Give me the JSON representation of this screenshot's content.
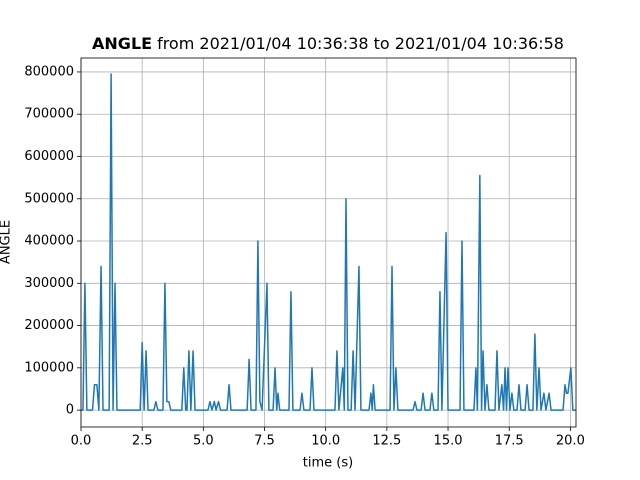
{
  "chart_data": {
    "type": "line",
    "title": {
      "bold": "ANGLE",
      "rest": "from 2021/01/04 10:36:38 to 2021/01/04 10:36:58"
    },
    "xlabel": "time (s)",
    "ylabel": "ANGLE",
    "color": "#1f77b4",
    "grid": true,
    "xlim": [
      0,
      20.23
    ],
    "ylim": [
      -40000,
      833000
    ],
    "xticks": [
      {
        "value": 0,
        "label": "0.0"
      },
      2.5,
      {
        "value": 5,
        "label": "5.0"
      },
      7.5,
      {
        "value": 10,
        "label": "10.0"
      },
      12.5,
      {
        "value": 15,
        "label": "15.0"
      },
      17.5,
      {
        "value": 20,
        "label": "20.0"
      }
    ],
    "yticks": [
      0,
      100000,
      200000,
      300000,
      400000,
      500000,
      600000,
      700000,
      800000
    ],
    "x": [
      0.0,
      0.08,
      0.16,
      0.24,
      0.47,
      0.55,
      0.65,
      0.73,
      0.82,
      0.9,
      1.15,
      1.23,
      1.31,
      1.39,
      1.47,
      2.42,
      2.5,
      2.58,
      2.66,
      2.74,
      2.98,
      3.06,
      3.14,
      3.35,
      3.43,
      3.51,
      3.59,
      3.67,
      4.12,
      4.2,
      4.28,
      4.33,
      4.41,
      4.49,
      4.58,
      4.66,
      5.19,
      5.27,
      5.35,
      5.45,
      5.52,
      5.62,
      5.7,
      5.97,
      6.05,
      6.13,
      6.79,
      6.87,
      6.95,
      7.15,
      7.23,
      7.31,
      7.4,
      7.6,
      7.68,
      7.85,
      7.93,
      8.0,
      8.05,
      8.12,
      8.5,
      8.58,
      8.66,
      8.95,
      9.03,
      9.11,
      9.36,
      9.44,
      9.52,
      10.38,
      10.46,
      10.54,
      10.7,
      10.76,
      10.83,
      10.91,
      11.04,
      11.12,
      11.2,
      11.36,
      11.44,
      11.77,
      11.85,
      11.9,
      11.95,
      12.02,
      12.63,
      12.71,
      12.79,
      12.87,
      12.95,
      13.57,
      13.65,
      13.73,
      13.9,
      13.98,
      14.06,
      14.26,
      14.34,
      14.42,
      14.59,
      14.67,
      14.75,
      14.92,
      15.0,
      15.49,
      15.57,
      15.65,
      16.06,
      16.14,
      16.2,
      16.3,
      16.37,
      16.43,
      16.51,
      16.59,
      16.67,
      16.92,
      17.0,
      17.08,
      17.2,
      17.27,
      17.33,
      17.39,
      17.45,
      17.53,
      17.61,
      17.69,
      17.82,
      17.9,
      17.98,
      18.15,
      18.23,
      18.31,
      18.47,
      18.55,
      18.63,
      18.72,
      18.8,
      18.92,
      19.0,
      19.13,
      19.21,
      19.7,
      19.78,
      19.84,
      19.9,
      20.02,
      20.1,
      20.23
    ],
    "values": [
      0,
      0,
      300000,
      0,
      0,
      60000,
      60000,
      0,
      340000,
      0,
      0,
      795000,
      0,
      300000,
      0,
      0,
      160000,
      0,
      140000,
      0,
      0,
      20000,
      0,
      0,
      300000,
      20000,
      20000,
      0,
      0,
      100000,
      0,
      0,
      140000,
      0,
      140000,
      0,
      0,
      20000,
      0,
      20000,
      0,
      20000,
      0,
      0,
      60000,
      0,
      0,
      120000,
      0,
      0,
      400000,
      20000,
      0,
      300000,
      0,
      0,
      100000,
      0,
      40000,
      0,
      0,
      280000,
      0,
      0,
      40000,
      0,
      0,
      100000,
      0,
      0,
      140000,
      0,
      100000,
      0,
      500000,
      0,
      0,
      140000,
      0,
      340000,
      0,
      0,
      40000,
      0,
      60000,
      0,
      0,
      340000,
      0,
      100000,
      0,
      0,
      20000,
      0,
      0,
      40000,
      0,
      0,
      40000,
      0,
      0,
      280000,
      0,
      420000,
      0,
      0,
      400000,
      0,
      0,
      100000,
      0,
      555000,
      0,
      140000,
      0,
      60000,
      0,
      0,
      140000,
      0,
      60000,
      0,
      100000,
      0,
      100000,
      0,
      40000,
      0,
      0,
      60000,
      0,
      0,
      60000,
      0,
      0,
      180000,
      0,
      100000,
      0,
      40000,
      0,
      40000,
      0,
      0,
      60000,
      40000,
      40000,
      100000,
      0,
      0
    ]
  }
}
